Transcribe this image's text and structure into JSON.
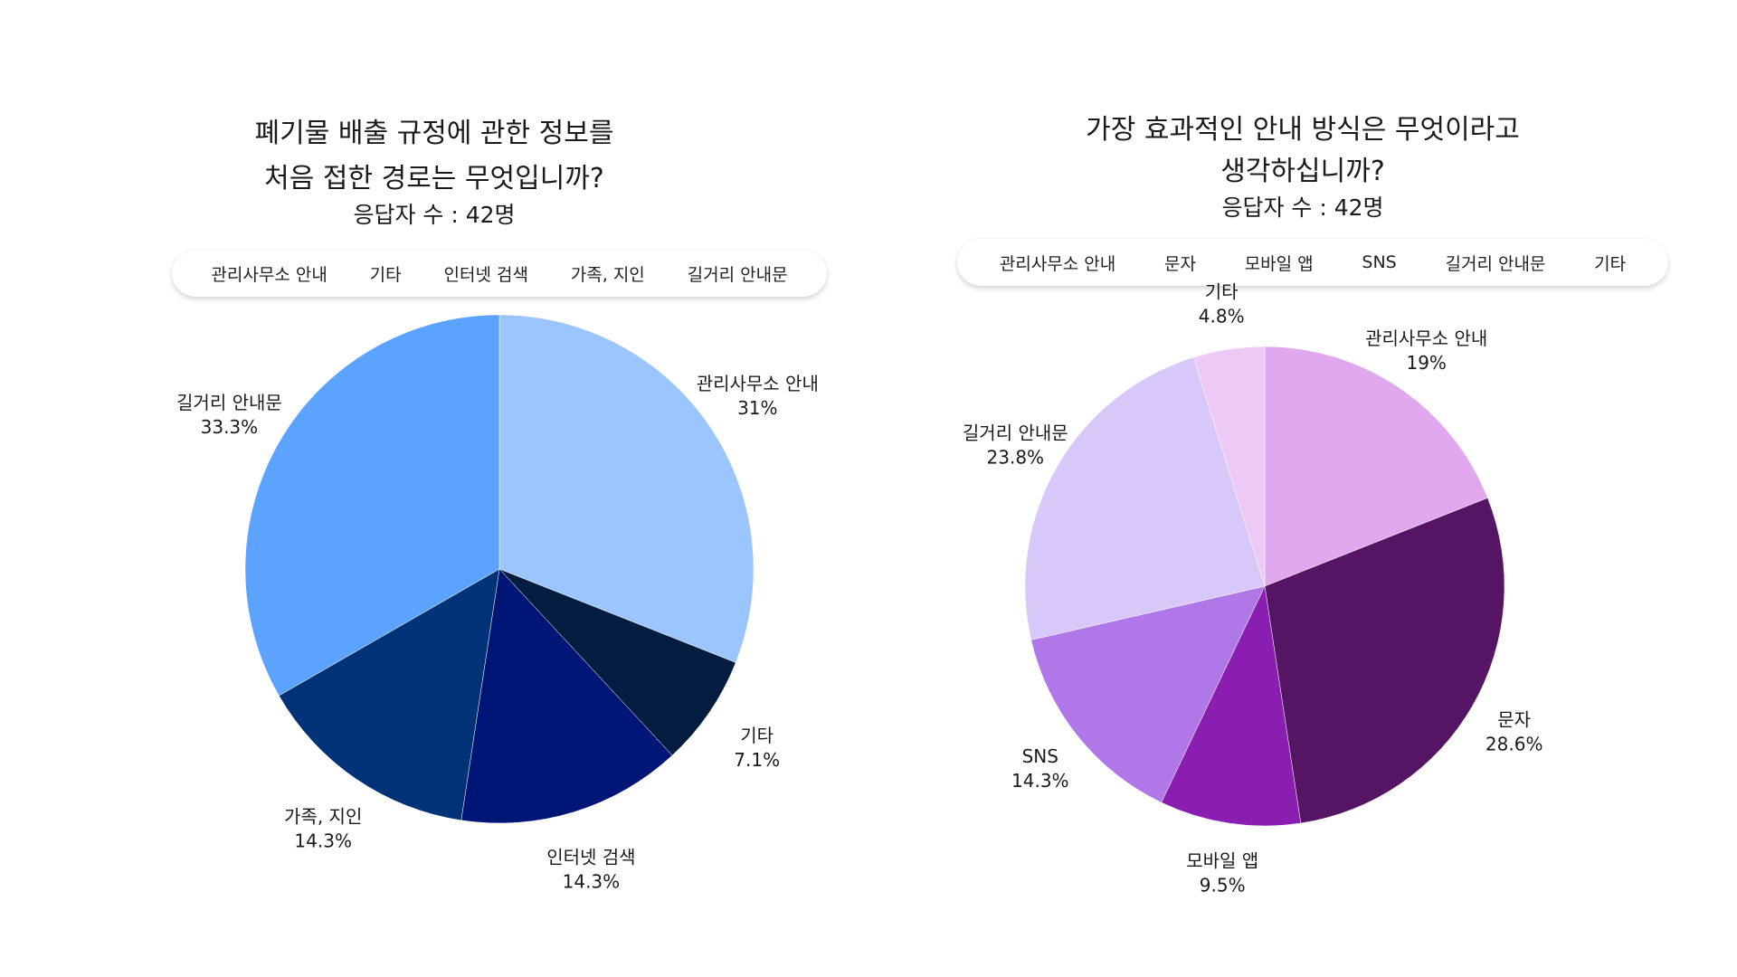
{
  "chart_data": [
    {
      "type": "pie",
      "title_lines": [
        "폐기물 배출 규정에 관한 정보를",
        "처음 접한 경로는 무엇입니까?"
      ],
      "subtitle": "응답자 수 : 42명",
      "legend": [
        "관리사무소 안내",
        "기타",
        "인터넷 검색",
        "가족, 지인",
        "길거리 안내문"
      ],
      "legend_position": "top",
      "slices": [
        {
          "label": "관리사무소 안내",
          "value": 31,
          "value_label": "31%",
          "color": "#9AC5FF"
        },
        {
          "label": "기타",
          "value": 7.1,
          "value_label": "7.1%",
          "color": "#031D40"
        },
        {
          "label": "인터넷 검색",
          "value": 14.3,
          "value_label": "14.3%",
          "color": "#001677"
        },
        {
          "label": "가족, 지인",
          "value": 14.3,
          "value_label": "14.3%",
          "color": "#003278"
        },
        {
          "label": "길거리 안내문",
          "value": 33.3,
          "value_label": "33.3%",
          "color": "#5CA2FF"
        }
      ]
    },
    {
      "type": "pie",
      "title_lines": [
        "가장 효과적인 안내 방식은 무엇이라고",
        "생각하십니까?"
      ],
      "subtitle": "응답자 수 : 42명",
      "legend": [
        "관리사무소 안내",
        "문자",
        "모바일 앱",
        "SNS",
        "길거리 안내문",
        "기타"
      ],
      "legend_position": "top",
      "slices": [
        {
          "label": "관리사무소 안내",
          "value": 19,
          "value_label": "19%",
          "color": "#E0A8EE"
        },
        {
          "label": "문자",
          "value": 28.6,
          "value_label": "28.6%",
          "color": "#561464"
        },
        {
          "label": "모바일 앱",
          "value": 9.5,
          "value_label": "9.5%",
          "color": "#8A1EB0"
        },
        {
          "label": "SNS",
          "value": 14.3,
          "value_label": "14.3%",
          "color": "#B077E8"
        },
        {
          "label": "길거리 안내문",
          "value": 23.8,
          "value_label": "23.8%",
          "color": "#D8C8FA"
        },
        {
          "label": "기타",
          "value": 4.8,
          "value_label": "4.8%",
          "color": "#EDC9F5"
        }
      ]
    }
  ]
}
